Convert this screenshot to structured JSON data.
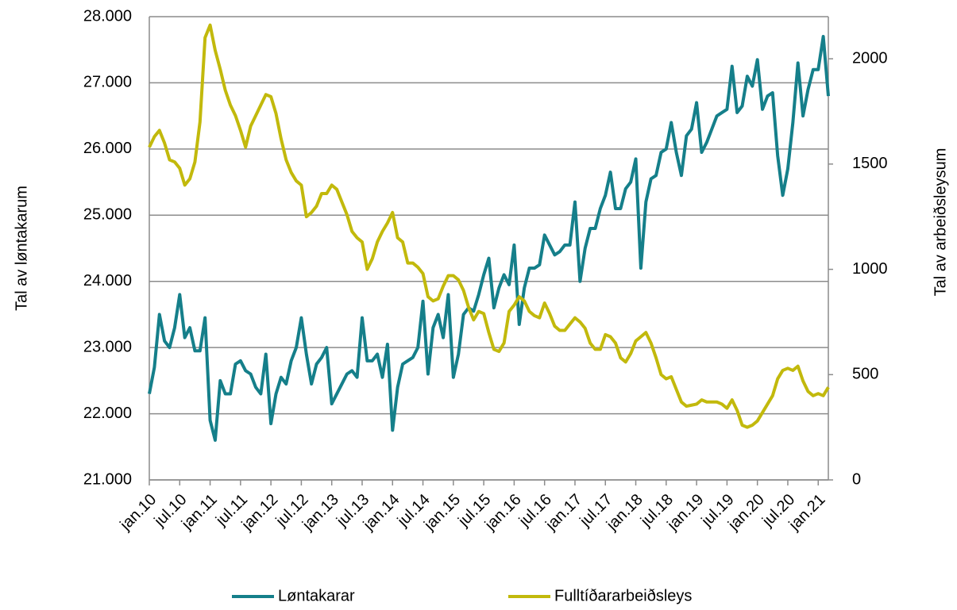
{
  "chart_data": {
    "type": "line",
    "y_label": "Tal av løntakarum",
    "y2_label": "Tal av arbeiðsleysum",
    "categories": [
      "jan.10",
      null,
      null,
      null,
      null,
      null,
      "jul.10",
      null,
      null,
      null,
      null,
      null,
      "jan.11",
      null,
      null,
      null,
      null,
      null,
      "jul.11",
      null,
      null,
      null,
      null,
      null,
      "jan.12",
      null,
      null,
      null,
      null,
      null,
      "jul.12",
      null,
      null,
      null,
      null,
      null,
      "jan.13",
      null,
      null,
      null,
      null,
      null,
      "jul.13",
      null,
      null,
      null,
      null,
      null,
      "jan.14",
      null,
      null,
      null,
      null,
      null,
      "jul.14",
      null,
      null,
      null,
      null,
      null,
      "jan.15",
      null,
      null,
      null,
      null,
      null,
      "jul.15",
      null,
      null,
      null,
      null,
      null,
      "jan.16",
      null,
      null,
      null,
      null,
      null,
      "jul.16",
      null,
      null,
      null,
      null,
      null,
      "jan.17",
      null,
      null,
      null,
      null,
      null,
      "jul.17",
      null,
      null,
      null,
      null,
      null,
      "jan.18",
      null,
      null,
      null,
      null,
      null,
      "jul.18",
      null,
      null,
      null,
      null,
      null,
      "jan.19",
      null,
      null,
      null,
      null,
      null,
      "jul.19",
      null,
      null,
      null,
      null,
      null,
      "jan.20",
      null,
      null,
      null,
      null,
      null,
      "jul.20",
      null,
      null,
      null,
      null,
      null,
      "jan.21",
      null,
      null
    ],
    "series": [
      {
        "name": "Løntakarar",
        "color": "#157f8a",
        "values": [
          22300,
          22700,
          23500,
          23100,
          23000,
          23300,
          23800,
          23150,
          23300,
          22950,
          22950,
          23450,
          21900,
          21600,
          22500,
          22300,
          22300,
          22750,
          22800,
          22650,
          22600,
          22400,
          22300,
          22900,
          21850,
          22300,
          22550,
          22450,
          22800,
          23000,
          23450,
          22900,
          22450,
          22750,
          22850,
          23000,
          22150,
          22300,
          22450,
          22600,
          22650,
          22550,
          23450,
          22800,
          22800,
          22900,
          22550,
          23050,
          21750,
          22400,
          22750,
          22800,
          22850,
          23000,
          23700,
          22600,
          23300,
          23500,
          23150,
          23800,
          22550,
          22900,
          23500,
          23600,
          23550,
          23800,
          24100,
          24350,
          23600,
          23900,
          24100,
          23950,
          24550,
          23350,
          23900,
          24200,
          24200,
          24250,
          24700,
          24550,
          24400,
          24450,
          24550,
          24550,
          25200,
          24000,
          24500,
          24800,
          24800,
          25100,
          25300,
          25650,
          25100,
          25100,
          25400,
          25500,
          25850,
          24200,
          25200,
          25550,
          25600,
          25950,
          26000,
          26400,
          25950,
          25600,
          26200,
          26300,
          26700,
          25950,
          26100,
          26300,
          26500,
          26550,
          26600,
          27250,
          26550,
          26650,
          27100,
          26950,
          27350,
          26600,
          26800,
          26850,
          25900,
          25300,
          25700,
          26400,
          27300,
          26500,
          26900,
          27200,
          27200,
          27700,
          26800
        ]
      },
      {
        "name": "Fulltíðararbeiðsleys",
        "color": "#c2b90c",
        "axis": "y2",
        "values": [
          1580,
          1630,
          1660,
          1600,
          1520,
          1510,
          1480,
          1400,
          1430,
          1510,
          1700,
          2100,
          2160,
          2040,
          1950,
          1850,
          1780,
          1730,
          1660,
          1580,
          1680,
          1730,
          1780,
          1830,
          1820,
          1740,
          1620,
          1520,
          1460,
          1420,
          1400,
          1250,
          1270,
          1300,
          1360,
          1360,
          1400,
          1380,
          1320,
          1260,
          1180,
          1150,
          1130,
          1000,
          1050,
          1130,
          1180,
          1220,
          1270,
          1150,
          1130,
          1030,
          1030,
          1010,
          980,
          870,
          850,
          860,
          920,
          970,
          970,
          950,
          900,
          820,
          760,
          800,
          790,
          700,
          620,
          610,
          650,
          800,
          830,
          870,
          850,
          800,
          780,
          770,
          840,
          790,
          730,
          710,
          710,
          740,
          770,
          750,
          720,
          650,
          620,
          620,
          690,
          680,
          650,
          580,
          560,
          600,
          660,
          680,
          700,
          650,
          580,
          500,
          480,
          490,
          430,
          370,
          350,
          355,
          360,
          380,
          370,
          370,
          370,
          360,
          340,
          380,
          330,
          260,
          250,
          260,
          280,
          320,
          360,
          400,
          480,
          520,
          530,
          520,
          540,
          470,
          420,
          400,
          410,
          400,
          440
        ]
      }
    ],
    "ylim": [
      21000,
      28000
    ],
    "yticks": [
      {
        "value": 21000,
        "label": "21.000"
      },
      {
        "value": 22000,
        "label": "22.000"
      },
      {
        "value": 23000,
        "label": "23.000"
      },
      {
        "value": 24000,
        "label": "24.000"
      },
      {
        "value": 25000,
        "label": "25.000"
      },
      {
        "value": 26000,
        "label": "26.000"
      },
      {
        "value": 27000,
        "label": "27.000"
      },
      {
        "value": 28000,
        "label": "28.000"
      }
    ],
    "y2lim": [
      0,
      2200
    ],
    "y2ticks": [
      0,
      500,
      1000,
      1500,
      2000
    ],
    "grid": true,
    "legend": "bottom"
  }
}
